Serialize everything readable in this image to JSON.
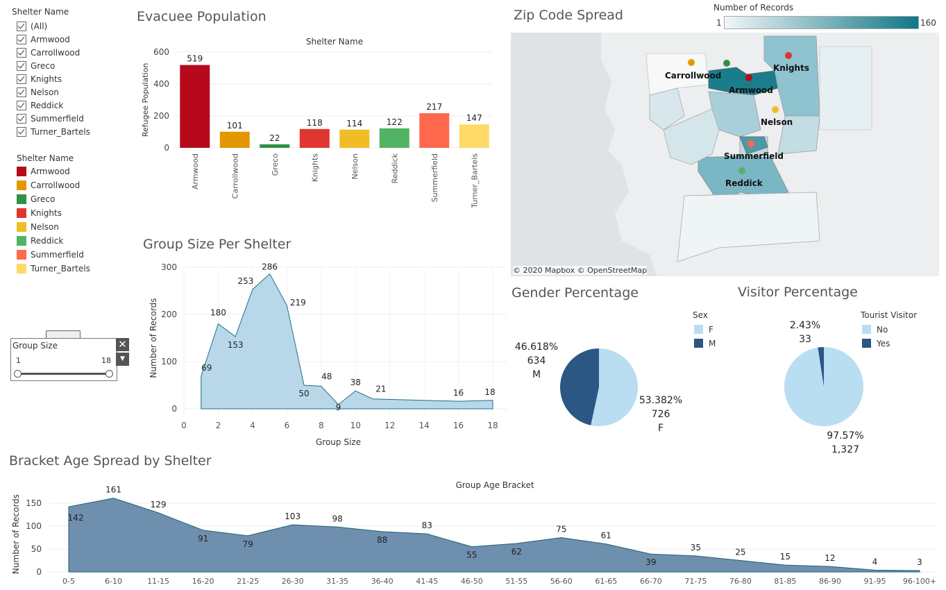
{
  "filters": {
    "shelter_filter_title": "Shelter Name",
    "shelter_options": [
      "(All)",
      "Armwood",
      "Carrollwood",
      "Greco",
      "Knights",
      "Nelson",
      "Reddick",
      "Summerfield",
      "Turner_Bartels"
    ],
    "legend_title": "Shelter Name",
    "legend_items": [
      {
        "label": "Armwood",
        "color": "#b60a1c"
      },
      {
        "label": "Carrollwood",
        "color": "#e39802"
      },
      {
        "label": "Greco",
        "color": "#309143"
      },
      {
        "label": "Knights",
        "color": "#e03531"
      },
      {
        "label": "Nelson",
        "color": "#f0bd27"
      },
      {
        "label": "Reddick",
        "color": "#51b364"
      },
      {
        "label": "Summerfield",
        "color": "#ff684c"
      },
      {
        "label": "Turner_Bartels",
        "color": "#ffda66"
      }
    ],
    "group_size": {
      "title": "Group Size",
      "min_label": "1",
      "max_label": "18",
      "close_icon": "close-icon",
      "dropdown_icon": "chevron-down-icon"
    }
  },
  "titles": {
    "evacuee": "Evacuee Population",
    "group_size": "Group Size Per Shelter",
    "zip": "Zip Code Spread",
    "gender": "Gender Percentage",
    "visitor": "Visitor Percentage",
    "bracket": "Bracket Age Spread by Shelter"
  },
  "map": {
    "legend_title": "Number of Records",
    "legend_min": "1",
    "legend_max": "160",
    "attribution": "© 2020 Mapbox © OpenStreetMap",
    "labels": [
      "Carrollwood",
      "Knights",
      "Armwood",
      "Nelson",
      "Summerfield",
      "Reddick"
    ]
  },
  "chart_data": [
    {
      "type": "bar",
      "header": "Shelter Name",
      "ylabel": "Refugee Population",
      "categories": [
        "Armwood",
        "Carrollwood",
        "Greco",
        "Knights",
        "Nelson",
        "Reddick",
        "Summerfield",
        "Turner_Bartels"
      ],
      "values": [
        519,
        101,
        22,
        118,
        114,
        122,
        217,
        147
      ],
      "colors": [
        "#b60a1c",
        "#e39802",
        "#309143",
        "#e03531",
        "#f0bd27",
        "#51b364",
        "#ff684c",
        "#ffda66"
      ],
      "ylim": [
        0,
        600
      ],
      "yticks": [
        0,
        200,
        400,
        600
      ]
    },
    {
      "type": "area",
      "xlabel": "Group Size",
      "ylabel": "Number of Records",
      "x": [
        1,
        2,
        3,
        4,
        5,
        6,
        7,
        8,
        9,
        10,
        11,
        16,
        18
      ],
      "y": [
        69,
        180,
        153,
        253,
        286,
        219,
        50,
        48,
        9,
        38,
        21,
        16,
        18
      ],
      "labeled_points": [
        [
          1,
          69
        ],
        [
          2,
          180
        ],
        [
          3,
          153
        ],
        [
          4,
          253
        ],
        [
          5,
          286
        ],
        [
          6,
          219
        ],
        [
          7,
          50
        ],
        [
          8,
          48
        ],
        [
          9,
          9
        ],
        [
          10,
          38
        ],
        [
          11,
          21
        ],
        [
          16,
          16
        ],
        [
          18,
          18
        ]
      ],
      "xticks": [
        0,
        2,
        4,
        6,
        8,
        10,
        12,
        14,
        16,
        18
      ],
      "yticks": [
        0,
        100,
        200,
        300
      ],
      "xlim": [
        0,
        18
      ],
      "ylim": [
        0,
        300
      ]
    },
    {
      "type": "pie",
      "legend_title": "Sex",
      "slices": [
        {
          "label": "F",
          "value": 726,
          "percent": "53.382%",
          "count": "726",
          "color": "#b9ddf1"
        },
        {
          "label": "M",
          "value": 634,
          "percent": "46.618%",
          "count": "634",
          "color": "#2a5783"
        }
      ]
    },
    {
      "type": "pie",
      "legend_title": "Tourist Visitor",
      "slices": [
        {
          "label": "No",
          "value": 1327,
          "percent": "97.57%",
          "count": "1,327",
          "color": "#b9ddf1"
        },
        {
          "label": "Yes",
          "value": 33,
          "percent": "2.43%",
          "count": "33",
          "color": "#2a5783"
        }
      ]
    },
    {
      "type": "area",
      "header": "Group Age Bracket",
      "ylabel": "Number of Records",
      "categories": [
        "0-5",
        "6-10",
        "11-15",
        "16-20",
        "21-25",
        "26-30",
        "31-35",
        "36-40",
        "41-45",
        "46-50",
        "51-55",
        "56-60",
        "61-65",
        "66-70",
        "71-75",
        "76-80",
        "81-85",
        "86-90",
        "91-95",
        "96-100+"
      ],
      "values": [
        142,
        161,
        129,
        91,
        79,
        103,
        98,
        88,
        83,
        55,
        62,
        75,
        61,
        39,
        35,
        25,
        15,
        12,
        4,
        3
      ],
      "yticks": [
        0,
        50,
        100,
        150
      ],
      "ylim": [
        0,
        165
      ]
    }
  ]
}
